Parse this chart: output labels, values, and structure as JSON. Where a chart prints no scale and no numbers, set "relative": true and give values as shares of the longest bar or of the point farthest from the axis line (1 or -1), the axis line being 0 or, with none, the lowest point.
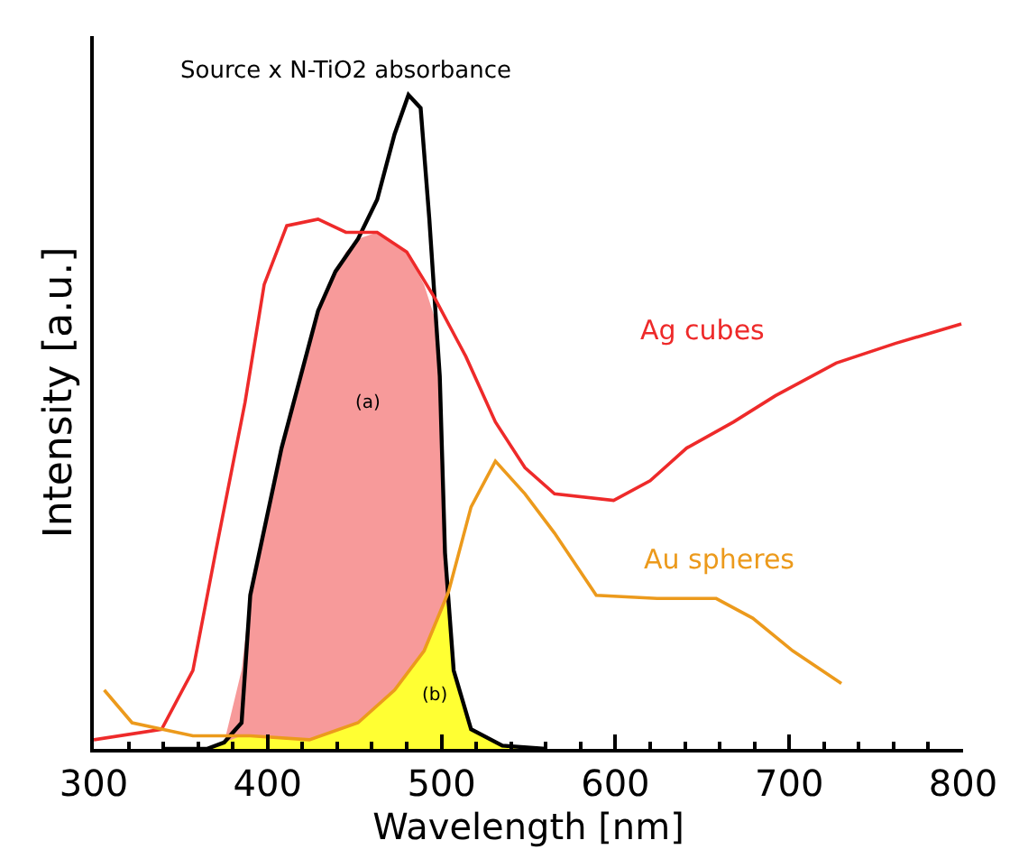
{
  "chart_data": {
    "type": "line",
    "relative": true,
    "xlabel": "Wavelength [nm]",
    "ylabel": "Intensity [a.u.]",
    "xlim": [
      300,
      800
    ],
    "xticks": [
      300,
      400,
      500,
      600,
      700,
      800
    ],
    "legend": false,
    "marker": "none",
    "line_style": "solid",
    "series": [
      {
        "type": "area",
        "color": "#f79a9a",
        "x": [
          375,
          385,
          390,
          408,
          429,
          439,
          445,
          452,
          463,
          473,
          480,
          490,
          496,
          499,
          502,
          507,
          517,
          525
        ],
        "values": [
          0.01,
          0.12,
          0.235,
          0.46,
          0.67,
          0.73,
          0.76,
          0.78,
          0.79,
          0.77,
          0.76,
          0.71,
          0.66,
          0.57,
          0.3,
          0.12,
          0.03,
          0
        ]
      },
      {
        "type": "area",
        "color": "#ffff33",
        "x": [
          365,
          375,
          385,
          424,
          452,
          473,
          490,
          500,
          502,
          504,
          507,
          517,
          535,
          545
        ],
        "values": [
          0,
          0.01,
          0.02,
          0.014,
          0.04,
          0.09,
          0.15,
          0.21,
          0.23,
          0.21,
          0.12,
          0.03,
          0.005,
          0
        ]
      },
      {
        "name": "Source x N-TiO2 absorbance",
        "color": "#000000",
        "x": [
          340,
          365,
          375,
          385,
          390,
          408,
          429,
          439,
          452,
          463,
          473,
          481,
          488,
          493,
          499,
          502,
          507,
          517,
          535,
          560
        ],
        "values": [
          0,
          0,
          0.01,
          0.04,
          0.235,
          0.46,
          0.67,
          0.73,
          0.78,
          0.84,
          0.94,
          1.0,
          0.98,
          0.81,
          0.57,
          0.3,
          0.12,
          0.03,
          0.005,
          0
        ]
      },
      {
        "name": "Ag cubes",
        "color": "#ee2a2a",
        "x": [
          300,
          339,
          357,
          370,
          387,
          398,
          411,
          429,
          445,
          463,
          480,
          496,
          514,
          531,
          548,
          565,
          599,
          620,
          641,
          668,
          692,
          727,
          761,
          799
        ],
        "values": [
          0.014,
          0.03,
          0.12,
          0.3,
          0.53,
          0.71,
          0.8,
          0.81,
          0.79,
          0.79,
          0.76,
          0.69,
          0.6,
          0.5,
          0.43,
          0.39,
          0.38,
          0.41,
          0.46,
          0.5,
          0.54,
          0.59,
          0.62,
          0.65
        ]
      },
      {
        "name": "Au spheres",
        "color": "#ec9a1c",
        "x": [
          306,
          322,
          357,
          390,
          424,
          452,
          473,
          490,
          504,
          517,
          531,
          548,
          565,
          589,
          624,
          658,
          679,
          702,
          730
        ],
        "values": [
          0.09,
          0.04,
          0.02,
          0.02,
          0.014,
          0.04,
          0.09,
          0.15,
          0.24,
          0.37,
          0.44,
          0.39,
          0.33,
          0.235,
          0.23,
          0.23,
          0.2,
          0.15,
          0.1
        ]
      }
    ],
    "annotations": [
      "(a)",
      "(b)"
    ]
  }
}
